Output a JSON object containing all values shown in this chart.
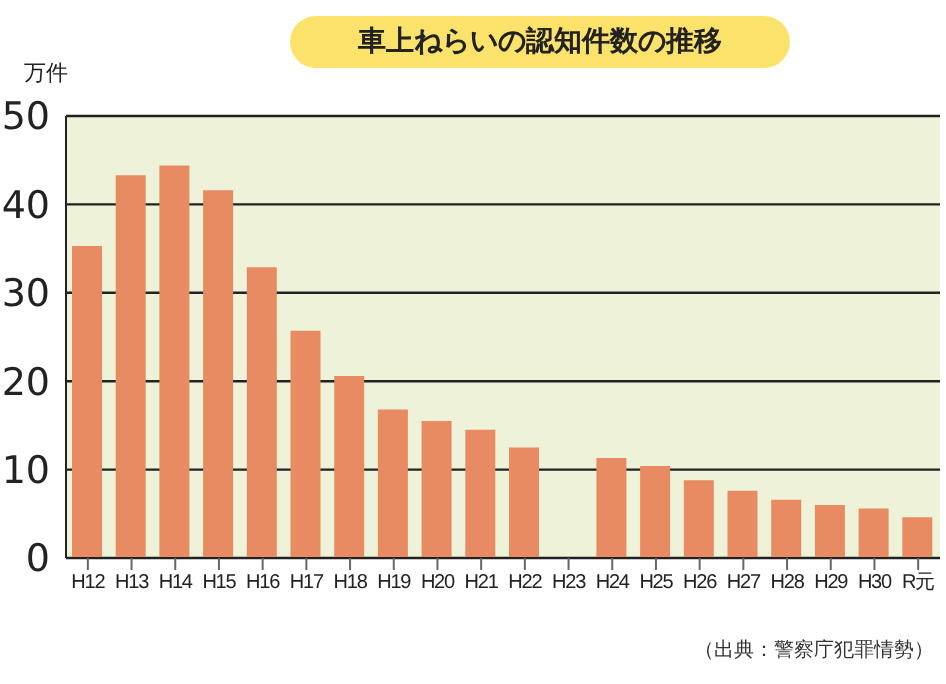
{
  "chart_data": {
    "type": "bar",
    "title": "車上ねらいの認知件数の推移",
    "ylabel": "万件",
    "categories": [
      "H12",
      "H13",
      "H14",
      "H15",
      "H16",
      "H17",
      "H18",
      "H19",
      "H20",
      "H21",
      "H22",
      "H23",
      "H24",
      "H25",
      "H26",
      "H27",
      "H28",
      "H29",
      "H30",
      "R元"
    ],
    "values": [
      35.3,
      43.3,
      44.4,
      41.6,
      32.9,
      25.7,
      20.6,
      16.8,
      15.5,
      14.5,
      12.5,
      null,
      11.3,
      10.4,
      8.8,
      7.6,
      6.6,
      6.0,
      5.6,
      4.6
    ],
    "color": "#e88a62",
    "ylim": [
      0,
      50
    ],
    "yticks": [
      0,
      10,
      20,
      30,
      40,
      50
    ],
    "grid": "y",
    "annotations": [
      "（出典：警察庁犯罪情勢）"
    ]
  }
}
